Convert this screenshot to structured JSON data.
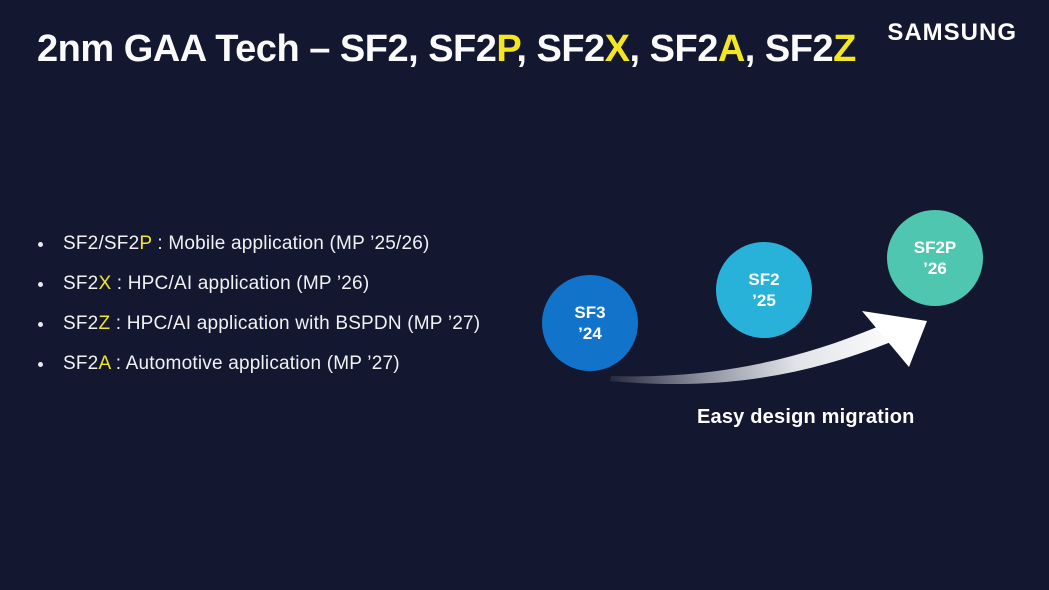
{
  "colors": {
    "background": "#131730",
    "accent_yellow": "#F2E722",
    "text_white": "#FFFFFF",
    "node_sf3": "#1173C9",
    "node_sf2": "#29B2D9",
    "node_sf2p": "#4FC6AF"
  },
  "header": {
    "title_segments": [
      {
        "t": "2nm GAA Tech – SF2, SF2"
      },
      {
        "t": "P",
        "h": true
      },
      {
        "t": ", SF2"
      },
      {
        "t": "X",
        "h": true
      },
      {
        "t": ", SF2"
      },
      {
        "t": "A",
        "h": true
      },
      {
        "t": ", SF2"
      },
      {
        "t": "Z",
        "h": true
      }
    ],
    "logo_text": "SAMSUNG"
  },
  "bullets": [
    {
      "segments": [
        {
          "t": "SF2/SF2"
        },
        {
          "t": "P",
          "h": true
        },
        {
          "t": " : Mobile application (MP ’25/26)"
        }
      ]
    },
    {
      "segments": [
        {
          "t": "SF2"
        },
        {
          "t": "X",
          "h": true
        },
        {
          "t": " : HPC/AI application (MP ’26)"
        }
      ]
    },
    {
      "segments": [
        {
          "t": "SF2"
        },
        {
          "t": "Z",
          "h": true
        },
        {
          "t": " : HPC/AI application with BSPDN (MP ’27)"
        }
      ]
    },
    {
      "segments": [
        {
          "t": "SF2"
        },
        {
          "t": "A",
          "h": true
        },
        {
          "t": " : Automotive application (MP ’27)"
        }
      ]
    }
  ],
  "diagram": {
    "nodes": [
      {
        "label": "SF3",
        "year": "’24",
        "color": "#1173C9"
      },
      {
        "label": "SF2",
        "year": "’25",
        "color": "#29B2D9"
      },
      {
        "label": "SF2P",
        "year": "’26",
        "color": "#4FC6AF"
      }
    ],
    "arrow_caption": "Easy design migration"
  }
}
